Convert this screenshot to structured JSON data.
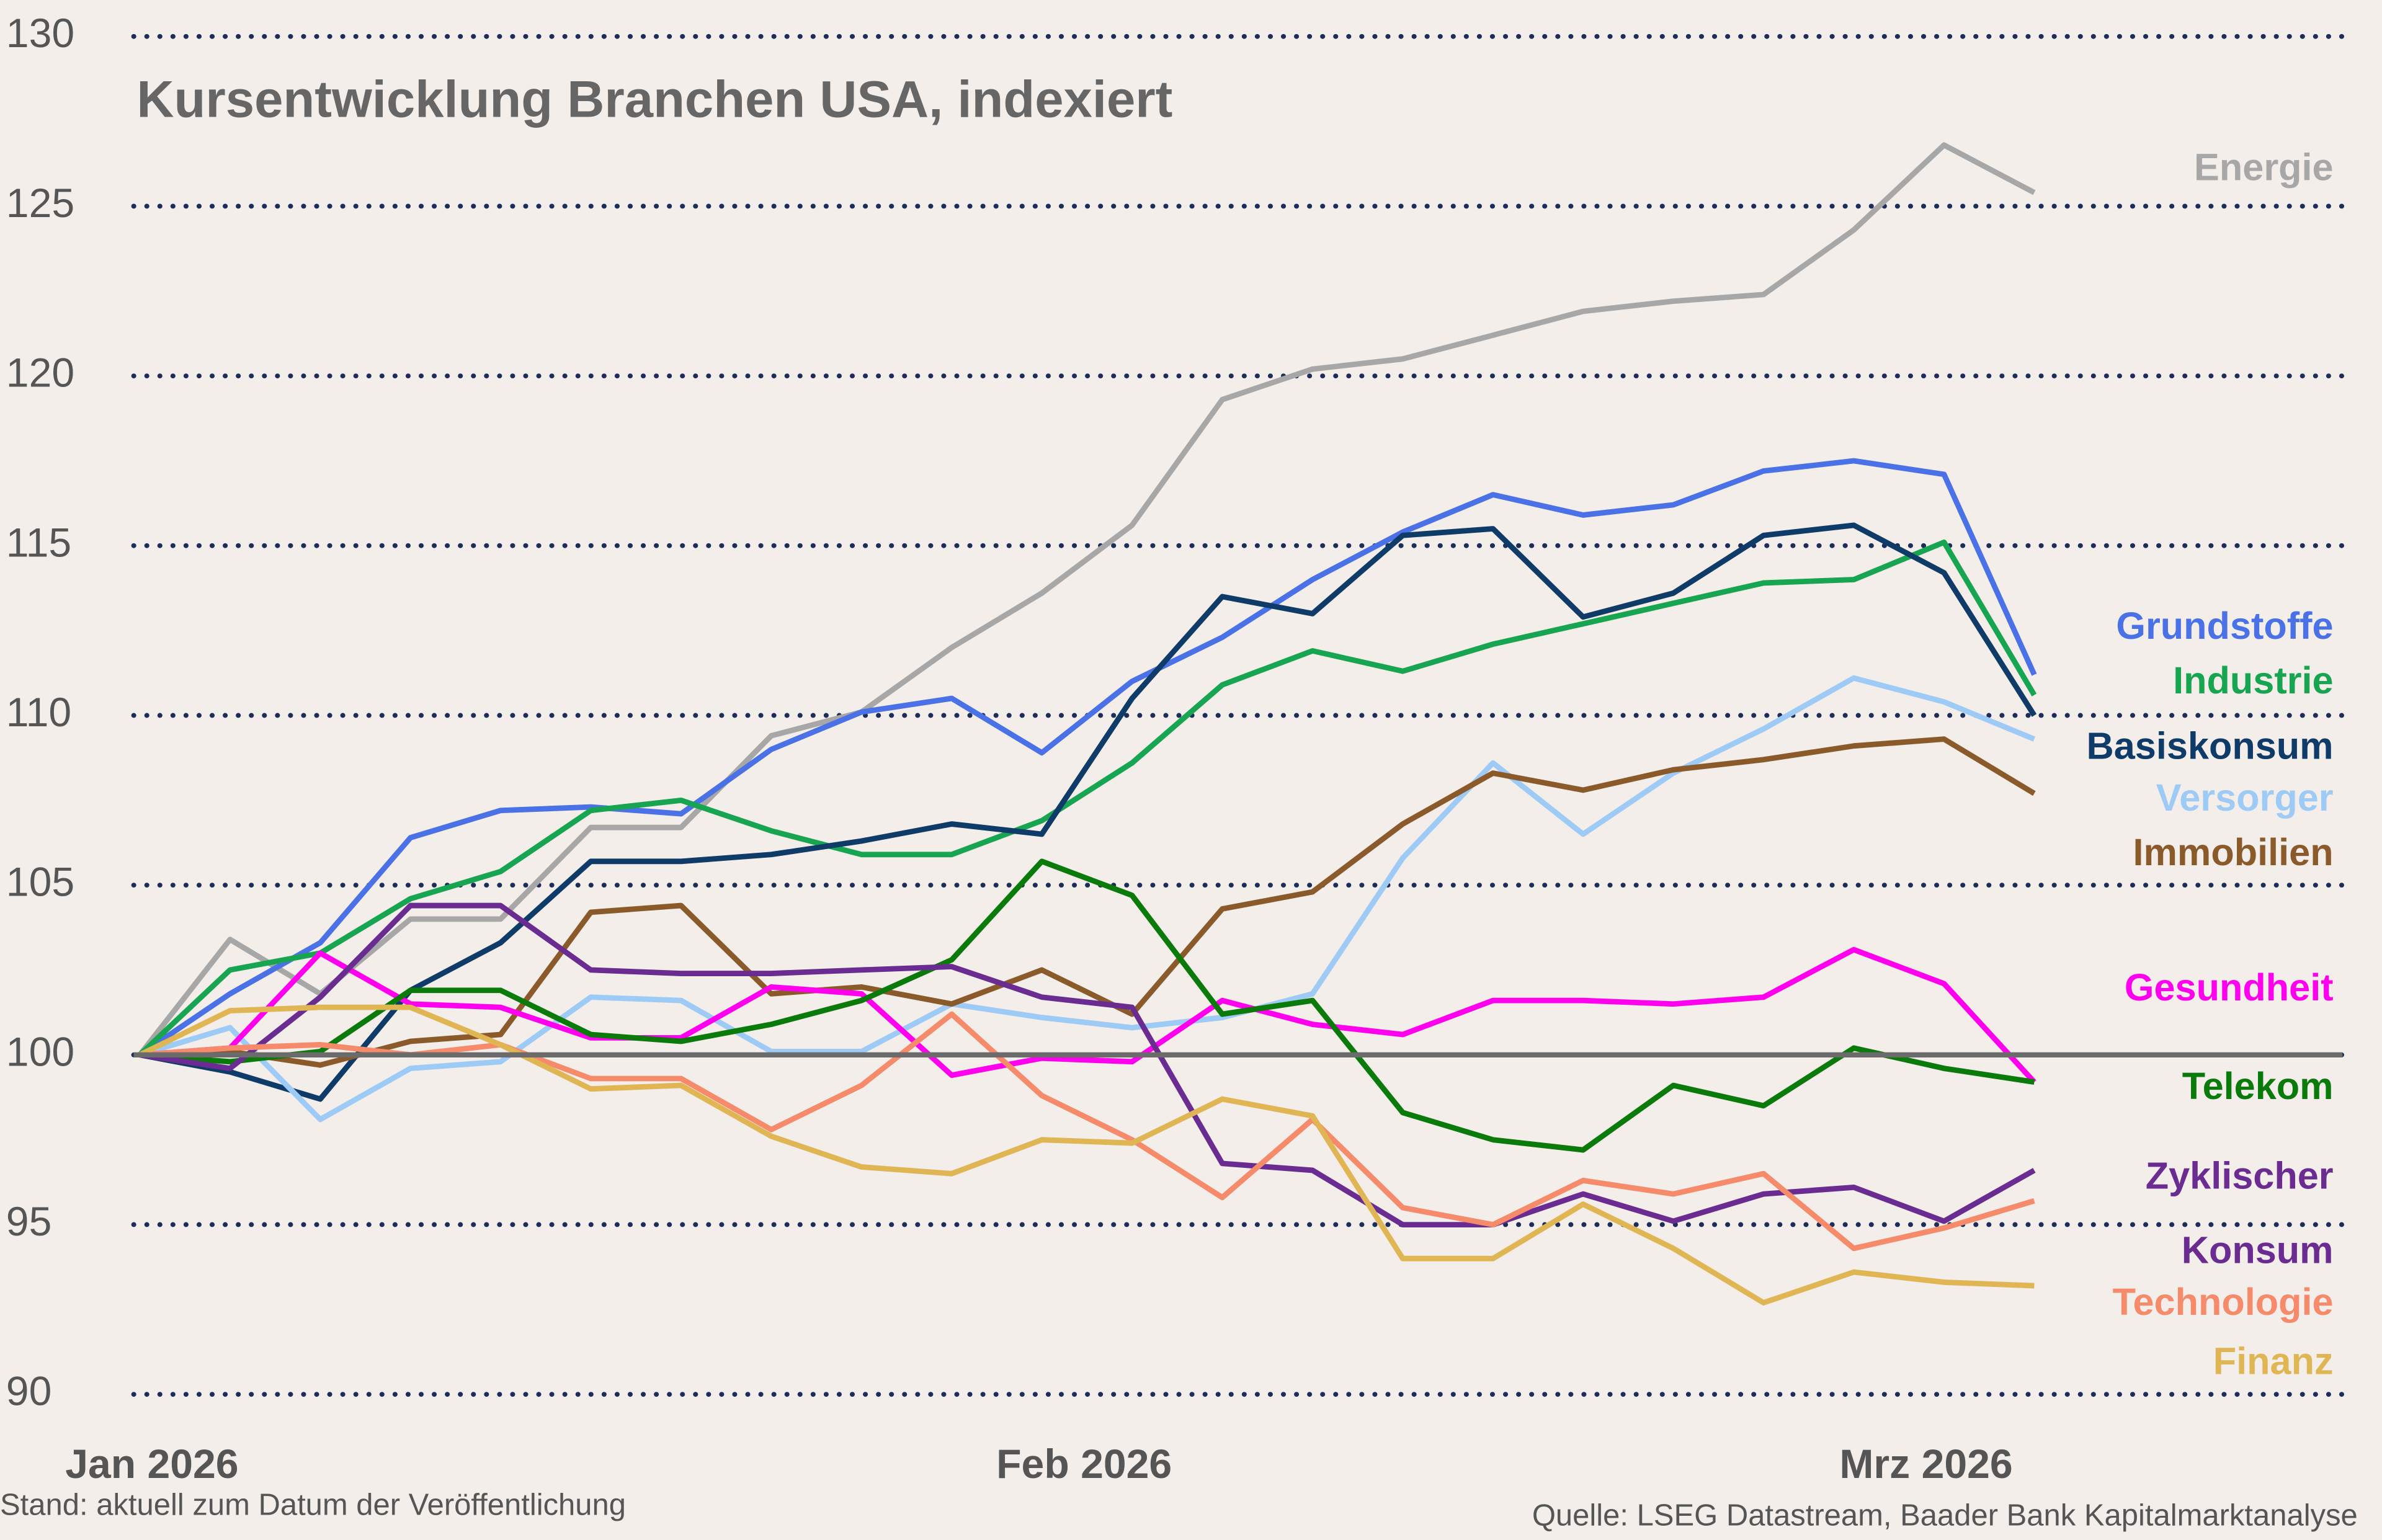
{
  "chart_data": {
    "type": "line",
    "title": "Kursentwicklung Branchen USA, indexiert",
    "note_left": "Stand: aktuell zum Datum der Veröffentlichung",
    "note_right": "Quelle: LSEG Datastream, Baader Bank Kapitalmarktanalyse",
    "x": [
      0,
      3,
      6,
      9,
      12,
      15,
      18,
      21,
      24,
      27,
      30,
      33,
      36,
      39,
      42,
      45,
      48,
      51,
      54,
      57,
      60,
      63
    ],
    "xlim": [
      0,
      73
    ],
    "xticks": [
      {
        "value": 0,
        "label": "Jan 2026"
      },
      {
        "value": 31,
        "label": "Feb 2026"
      },
      {
        "value": 59,
        "label": "Mrz 2026"
      }
    ],
    "ylim": [
      90,
      130
    ],
    "yticks": [
      90,
      95,
      100,
      105,
      110,
      115,
      120,
      125,
      130
    ],
    "grid": true,
    "reference_line": 100,
    "series": [
      {
        "name": "Energie",
        "color": "#a7a7a7",
        "values": [
          100,
          103.4,
          101.8,
          104,
          104,
          106.7,
          106.7,
          109.4,
          110.1,
          112,
          113.6,
          115.6,
          119.3,
          120.2,
          120.5,
          121.2,
          121.9,
          122.2,
          122.4,
          124.3,
          126.8,
          125.4
        ]
      },
      {
        "name": "Grundstoffe",
        "color": "#4a72e6",
        "values": [
          100,
          101.8,
          103.3,
          106.4,
          107.2,
          107.3,
          107.1,
          109,
          110.1,
          110.5,
          108.9,
          111,
          112.3,
          114,
          115.4,
          116.5,
          115.9,
          116.2,
          117.2,
          117.5,
          117.1,
          111.2
        ]
      },
      {
        "name": "Industrie",
        "color": "#17a552",
        "values": [
          100,
          102.5,
          103,
          104.6,
          105.4,
          107.2,
          107.5,
          106.6,
          105.9,
          105.9,
          106.9,
          108.6,
          110.9,
          111.9,
          111.3,
          112.1,
          112.7,
          113.3,
          113.9,
          114,
          115.1,
          110.6
        ]
      },
      {
        "name": "Basiskonsum",
        "color": "#0f3b68",
        "values": [
          100,
          99.5,
          98.7,
          101.9,
          103.3,
          105.7,
          105.7,
          105.9,
          106.3,
          106.8,
          106.5,
          110.5,
          113.5,
          113,
          115.3,
          115.5,
          112.9,
          113.6,
          115.3,
          115.6,
          114.2,
          110
        ]
      },
      {
        "name": "Versorger",
        "color": "#9ecbf5",
        "values": [
          100,
          100.8,
          98.1,
          99.6,
          99.8,
          101.7,
          101.6,
          100.1,
          100.1,
          101.5,
          101.1,
          100.8,
          101.1,
          101.8,
          105.8,
          108.6,
          106.5,
          108.3,
          109.6,
          111.1,
          110.4,
          109.3
        ]
      },
      {
        "name": "Immobilien",
        "color": "#8b5a2b",
        "values": [
          100,
          100.1,
          99.7,
          100.4,
          100.6,
          104.2,
          104.4,
          101.8,
          102,
          101.5,
          102.5,
          101.2,
          104.3,
          104.8,
          106.8,
          108.3,
          107.8,
          108.4,
          108.7,
          109.1,
          109.3,
          107.7
        ]
      },
      {
        "name": "Gesundheit",
        "color": "#ff00ee",
        "values": [
          100,
          100.2,
          103,
          101.5,
          101.4,
          100.5,
          100.5,
          102,
          101.8,
          99.4,
          99.9,
          99.8,
          101.6,
          100.9,
          100.6,
          101.6,
          101.6,
          101.5,
          101.7,
          103.1,
          102.1,
          99.2
        ]
      },
      {
        "name": "Telekom",
        "color": "#0a7a0a",
        "values": [
          100,
          99.8,
          100.1,
          101.9,
          101.9,
          100.6,
          100.4,
          100.9,
          101.6,
          102.8,
          105.7,
          104.7,
          101.2,
          101.6,
          98.3,
          97.5,
          97.2,
          99.1,
          98.5,
          100.2,
          99.6,
          99.2
        ]
      },
      {
        "name": "Zyklischer Konsum",
        "color": "#6a2c91",
        "values": [
          100,
          99.6,
          101.7,
          104.4,
          104.4,
          102.5,
          102.4,
          102.4,
          102.5,
          102.6,
          101.7,
          101.4,
          96.8,
          96.6,
          95,
          95,
          95.9,
          95.1,
          95.9,
          96.1,
          95.1,
          96.6
        ]
      },
      {
        "name": "Technologie",
        "color": "#f58b6b",
        "values": [
          100,
          100.2,
          100.3,
          100,
          100.3,
          99.3,
          99.3,
          97.8,
          99.1,
          101.2,
          98.8,
          97.5,
          95.8,
          98.1,
          95.5,
          95,
          96.3,
          95.9,
          96.5,
          94.3,
          94.9,
          95.7
        ]
      },
      {
        "name": "Finanz",
        "color": "#e0b655",
        "values": [
          100,
          101.3,
          101.4,
          101.4,
          100.3,
          99,
          99.1,
          97.6,
          96.7,
          96.5,
          97.5,
          97.4,
          98.7,
          98.2,
          94,
          94,
          95.6,
          94.3,
          92.7,
          93.6,
          93.3,
          93.2
        ]
      }
    ]
  }
}
